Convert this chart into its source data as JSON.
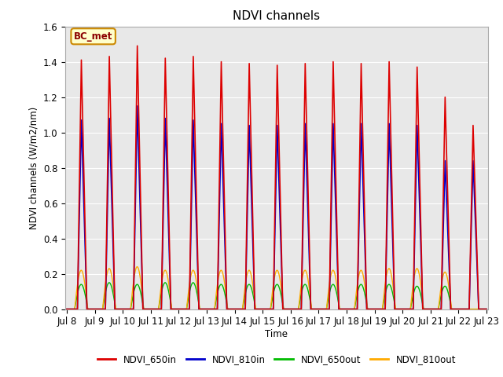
{
  "title": "NDVI channels",
  "ylabel": "NDVI channels (W/m2/nm)",
  "xlabel": "Time",
  "ylim": [
    0.0,
    1.6
  ],
  "colors": {
    "NDVI_650in": "#dd0000",
    "NDVI_810in": "#0000cc",
    "NDVI_650out": "#00bb00",
    "NDVI_810out": "#ffaa00"
  },
  "num_cycles": 15,
  "peak_heights_650in": [
    1.41,
    1.43,
    1.49,
    1.42,
    1.43,
    1.4,
    1.39,
    1.38,
    1.39,
    1.4,
    1.39,
    1.4,
    1.37,
    1.2,
    1.04
  ],
  "peak_heights_810in": [
    1.07,
    1.08,
    1.15,
    1.08,
    1.07,
    1.05,
    1.04,
    1.04,
    1.05,
    1.05,
    1.05,
    1.05,
    1.04,
    0.84,
    0.84
  ],
  "peak_heights_650out": [
    0.14,
    0.15,
    0.14,
    0.15,
    0.15,
    0.14,
    0.14,
    0.14,
    0.14,
    0.14,
    0.14,
    0.14,
    0.13,
    0.13,
    0.0
  ],
  "peak_heights_810out": [
    0.22,
    0.23,
    0.24,
    0.22,
    0.22,
    0.22,
    0.22,
    0.22,
    0.22,
    0.22,
    0.22,
    0.23,
    0.23,
    0.21,
    0.0
  ],
  "annotation_text": "BC_met",
  "background_color": "#e8e8e8",
  "xtick_labels": [
    "Jul 8",
    "Jul 9",
    "Jul 10",
    "Jul 11",
    "Jul 12",
    "Jul 13",
    "Jul 14",
    "Jul 15",
    "Jul 16",
    "Jul 17",
    "Jul 18",
    "Jul 19",
    "Jul 20",
    "Jul 21",
    "Jul 22",
    "Jul 23"
  ],
  "ytick_values": [
    0.0,
    0.2,
    0.4,
    0.6,
    0.8,
    1.0,
    1.2,
    1.4,
    1.6
  ]
}
